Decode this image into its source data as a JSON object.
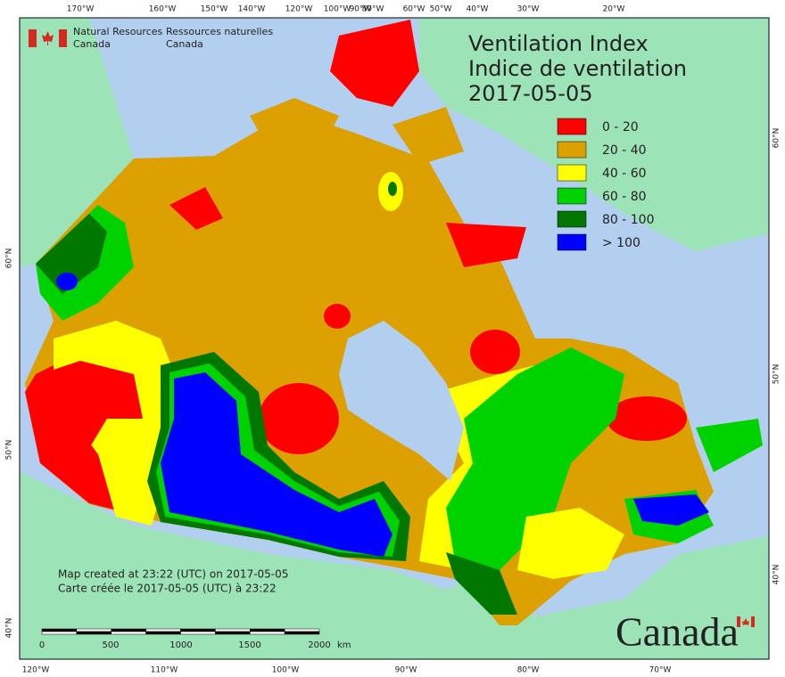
{
  "header": {
    "org_en": [
      "Natural Resources",
      "Canada"
    ],
    "org_fr": [
      "Ressources naturelles",
      "Canada"
    ]
  },
  "title": {
    "lines": [
      "Ventilation Index",
      "Indice de ventilation",
      "2017-05-05"
    ]
  },
  "legend": {
    "items": [
      {
        "label": "0 - 20",
        "color": "#ff0000"
      },
      {
        "label": "20 - 40",
        "color": "#dca000"
      },
      {
        "label": "40 - 60",
        "color": "#ffff00"
      },
      {
        "label": "60 - 80",
        "color": "#00d200"
      },
      {
        "label": "80 - 100",
        "color": "#007800"
      },
      {
        "label": "> 100",
        "color": "#0000ff"
      }
    ]
  },
  "graticule": {
    "top": [
      "170°W",
      "160°W",
      "150°W",
      "140°W",
      "120°W",
      "100°W",
      "90°W",
      "80°W",
      "60°W",
      "50°W",
      "40°W",
      "30°W",
      "20°W"
    ],
    "bottom": [
      "120°W",
      "110°W",
      "100°W",
      "90°W",
      "80°W",
      "70°W"
    ],
    "left": [
      "60°N",
      "50°N",
      "40°N"
    ],
    "right": [
      "60°N",
      "50°N",
      "40°N"
    ]
  },
  "notes": [
    "Map created at 23:22 (UTC) on 2017-05-05",
    "Carte créée le 2017-05-05 (UTC) à 23:22"
  ],
  "scale_bar": {
    "labels": [
      "0",
      "500",
      "1000",
      "1500",
      "2000"
    ],
    "unit": "km"
  },
  "wordmark": "Canada"
}
